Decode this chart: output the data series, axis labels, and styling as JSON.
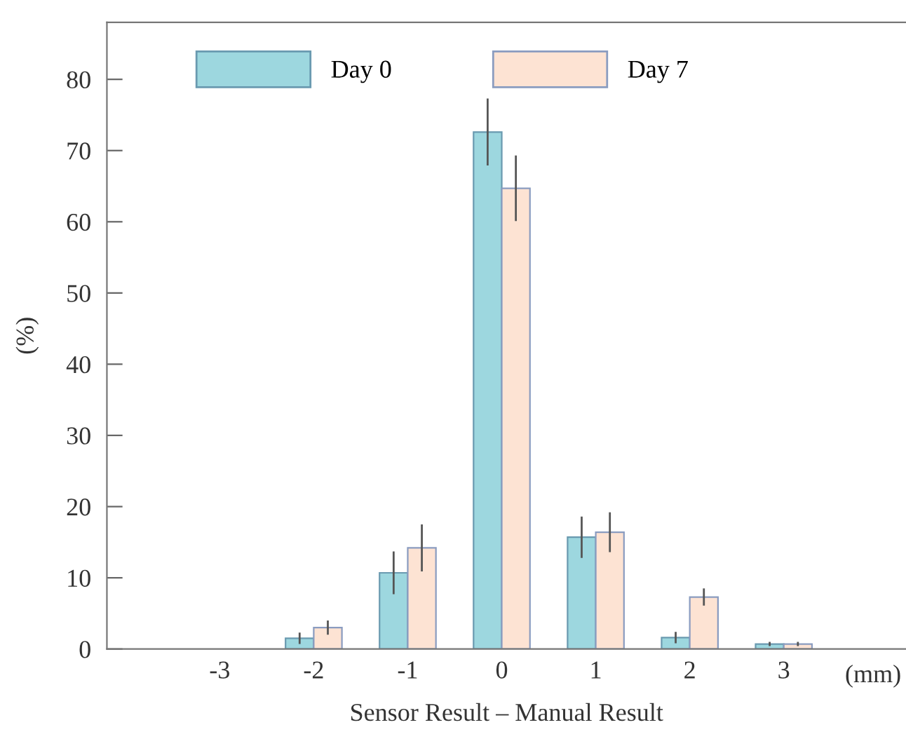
{
  "chart_data": {
    "type": "bar",
    "xlabel": "Sensor Result – Manual Result",
    "ylabel": "(%)",
    "categories": [
      "-3",
      "-2",
      "-1",
      "0",
      "1",
      "2",
      "3"
    ],
    "series": [
      {
        "name": "Day 0",
        "color": "#9dd7df",
        "values": [
          null,
          1.5,
          10.7,
          72.6,
          15.7,
          1.6,
          0.7
        ],
        "errors": [
          null,
          0.8,
          3,
          4.7,
          2.9,
          0.8,
          0.3
        ]
      },
      {
        "name": "Day 7",
        "color": "#fde3d3",
        "values": [
          null,
          3,
          14.2,
          64.7,
          16.4,
          7.3,
          0.7
        ],
        "errors": [
          null,
          1,
          3.3,
          4.6,
          2.8,
          1.2,
          0.3
        ]
      }
    ],
    "ylim": [
      0,
      88
    ],
    "yticks": [
      0,
      10,
      20,
      30,
      40,
      50,
      60,
      70,
      80
    ],
    "annotations": [
      "(mm)"
    ],
    "legend": "top",
    "grid": false
  }
}
